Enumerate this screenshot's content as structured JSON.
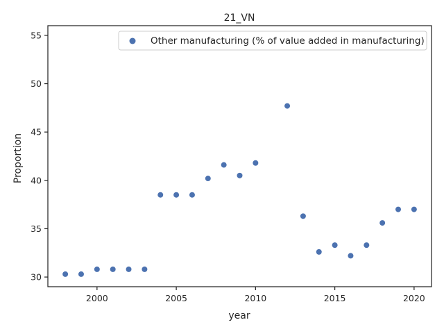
{
  "chart_data": {
    "type": "scatter",
    "title": "21_VN",
    "xlabel": "year",
    "ylabel": "Proportion",
    "xlim": [
      1996.9,
      2021.1
    ],
    "ylim": [
      29.0,
      56.0
    ],
    "xticks": [
      2000,
      2005,
      2010,
      2015,
      2020
    ],
    "yticks": [
      30,
      35,
      40,
      45,
      50,
      55
    ],
    "grid": false,
    "legend_position": "top-right",
    "series": [
      {
        "name": "Other manufacturing (% of value added in manufacturing)",
        "color": "#4c72b0",
        "points": [
          {
            "x": 1998,
            "y": 30.3
          },
          {
            "x": 1999,
            "y": 30.3
          },
          {
            "x": 2000,
            "y": 30.8
          },
          {
            "x": 2001,
            "y": 30.8
          },
          {
            "x": 2002,
            "y": 30.8
          },
          {
            "x": 2003,
            "y": 30.8
          },
          {
            "x": 2004,
            "y": 38.5
          },
          {
            "x": 2005,
            "y": 38.5
          },
          {
            "x": 2006,
            "y": 38.5
          },
          {
            "x": 2007,
            "y": 40.2
          },
          {
            "x": 2008,
            "y": 41.6
          },
          {
            "x": 2009,
            "y": 40.5
          },
          {
            "x": 2010,
            "y": 41.8
          },
          {
            "x": 2012,
            "y": 47.7
          },
          {
            "x": 2013,
            "y": 36.3
          },
          {
            "x": 2014,
            "y": 32.6
          },
          {
            "x": 2015,
            "y": 33.3
          },
          {
            "x": 2016,
            "y": 32.2
          },
          {
            "x": 2017,
            "y": 33.3
          },
          {
            "x": 2018,
            "y": 35.6
          },
          {
            "x": 2019,
            "y": 37.0
          },
          {
            "x": 2020,
            "y": 37.0
          }
        ]
      }
    ]
  }
}
